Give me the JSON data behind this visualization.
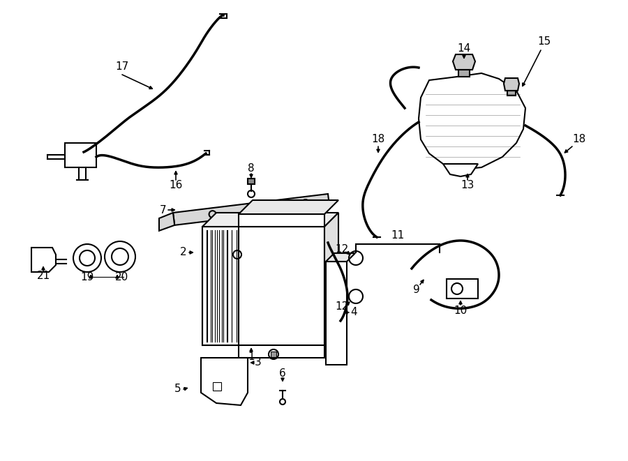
{
  "background_color": "#ffffff",
  "line_color": "#000000",
  "lw": 1.5,
  "thick_lw": 2.5,
  "label_fs": 11
}
